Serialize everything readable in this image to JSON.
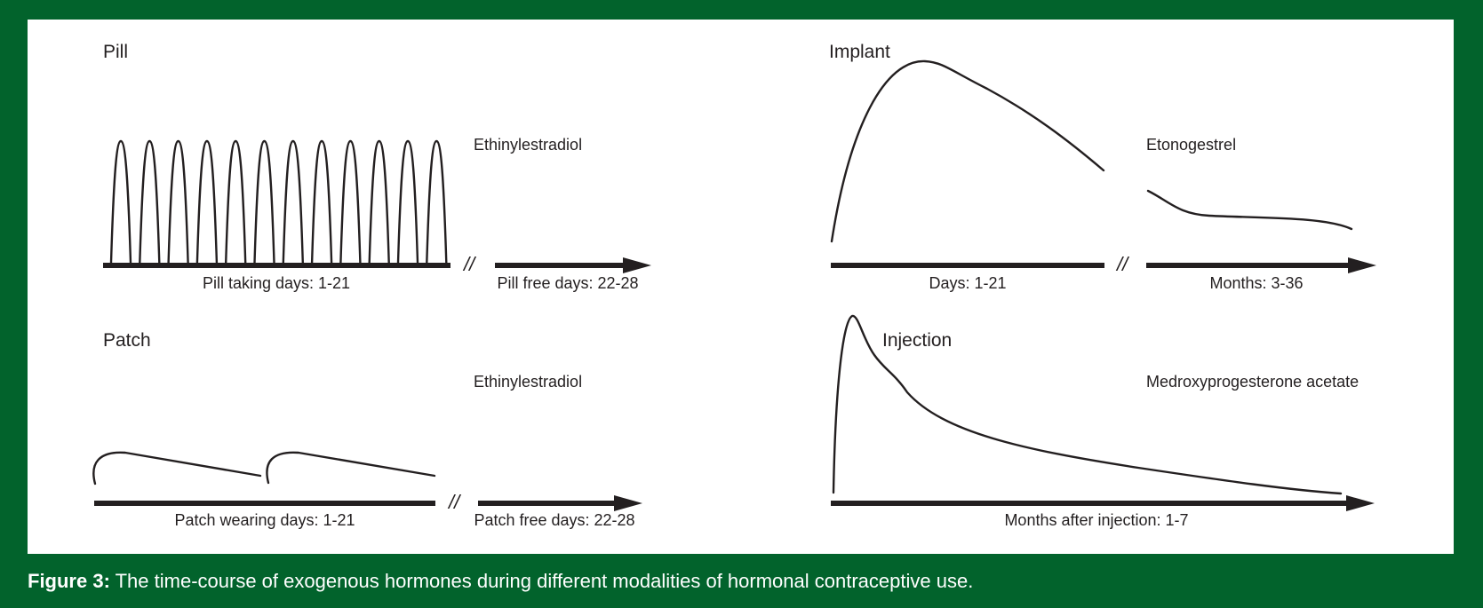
{
  "colors": {
    "background": "#02632c",
    "panel": "#ffffff",
    "ink": "#231f20",
    "caption_text": "#ffffff"
  },
  "break_mark": "//",
  "panels": {
    "pill": {
      "title": "Pill",
      "hormone": "Ethinylestradiol",
      "axis_1": "Pill taking days: 1-21",
      "axis_2": "Pill free days: 22-28"
    },
    "patch": {
      "title": "Patch",
      "hormone": "Ethinylestradiol",
      "axis_1": "Patch wearing days: 1-21",
      "axis_2": "Patch free days: 22-28"
    },
    "implant": {
      "title": "Implant",
      "hormone": "Etonogestrel",
      "axis_1": "Days: 1-21",
      "axis_2": "Months: 3-36"
    },
    "injection": {
      "title": "Injection",
      "hormone": "Medroxyprogesterone acetate",
      "axis_1": "Months after injection: 1-7"
    }
  },
  "caption": {
    "label": "Figure 3:",
    "text": " The time-course of exogenous hormones during different modalities of hormonal contraceptive use."
  }
}
